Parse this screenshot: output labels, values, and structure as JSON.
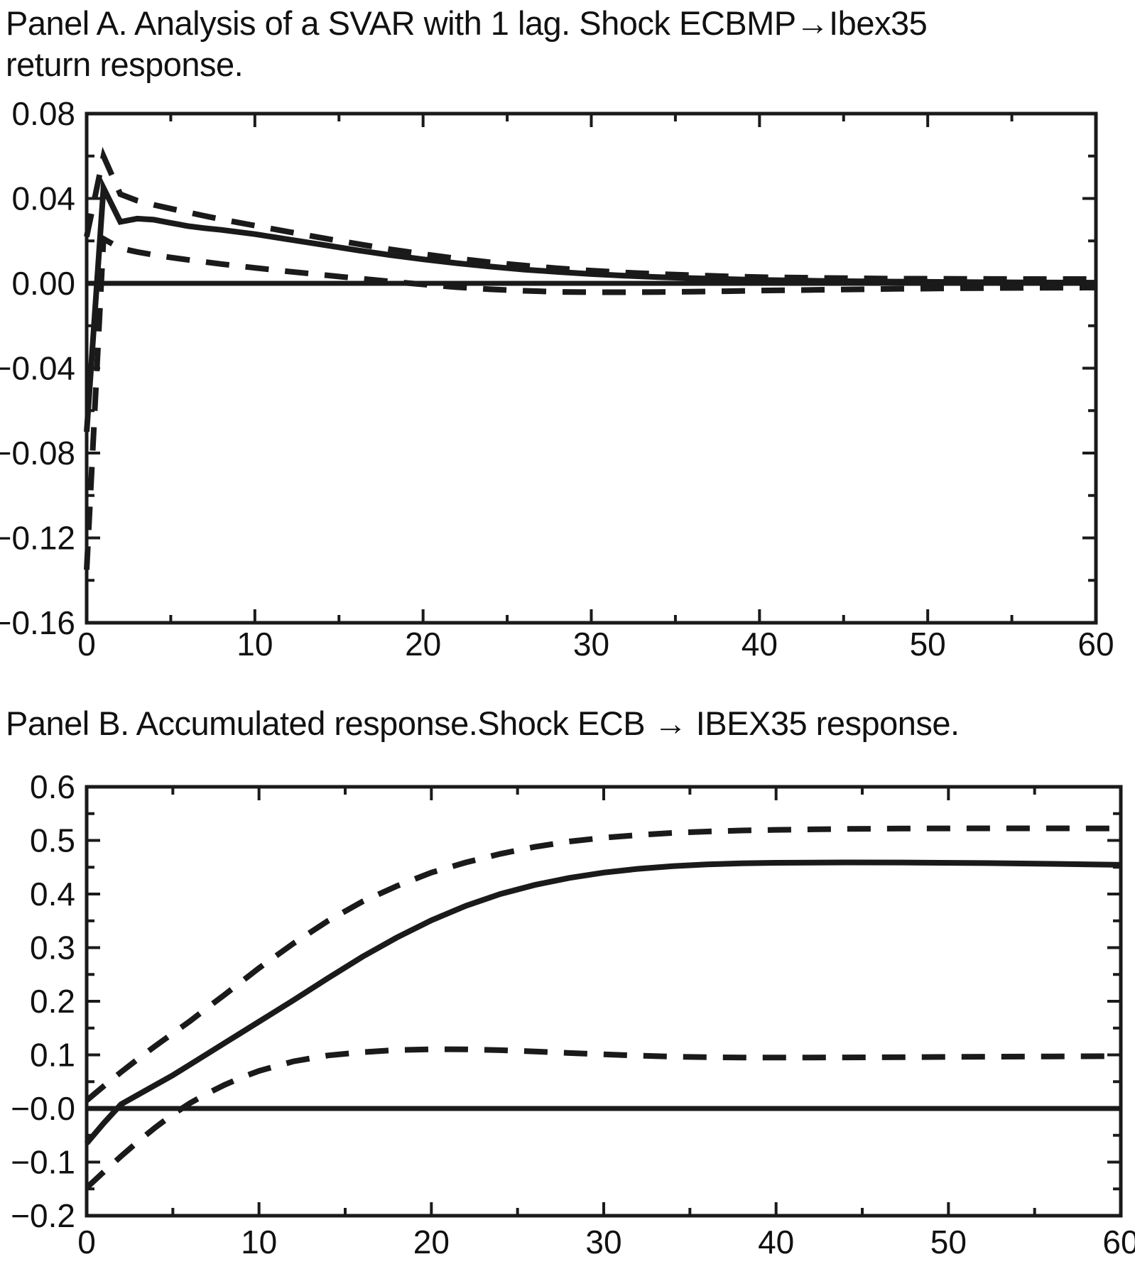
{
  "page": {
    "background_color": "#ffffff",
    "ink_color": "#1a1a1a"
  },
  "chart_data": [
    {
      "id": "panel_a",
      "type": "line",
      "title": "Panel A. Analysis of a SVAR with 1 lag. Shock ECBMP→Ibex35 return response.",
      "title_lines": [
        "Panel A. Analysis of a SVAR with 1 lag. Shock ECBMP→Ibex35",
        "return response."
      ],
      "xlabel": "",
      "ylabel": "",
      "xlim": [
        0,
        60
      ],
      "ylim": [
        -0.16,
        0.08
      ],
      "grid": false,
      "legend": "none",
      "zero_line": true,
      "xticks": {
        "major": [
          {
            "v": 0,
            "label": "0"
          },
          {
            "v": 10,
            "label": "10"
          },
          {
            "v": 20,
            "label": "20"
          },
          {
            "v": 30,
            "label": "30"
          },
          {
            "v": 40,
            "label": "40"
          },
          {
            "v": 50,
            "label": "50"
          },
          {
            "v": 60,
            "label": "60"
          }
        ],
        "minor": [
          5,
          15,
          25,
          35,
          45,
          55
        ]
      },
      "yticks": {
        "major": [
          {
            "v": 0.08,
            "label": "0.08"
          },
          {
            "v": 0.04,
            "label": "0.04"
          },
          {
            "v": 0.0,
            "label": "0.00"
          },
          {
            "v": -0.04,
            "label": "−0.04"
          },
          {
            "v": -0.08,
            "label": "−0.08"
          },
          {
            "v": -0.12,
            "label": "−0.12"
          },
          {
            "v": -0.16,
            "label": "−0.16"
          }
        ],
        "minor": [
          0.06,
          0.02,
          -0.02,
          -0.06,
          -0.1,
          -0.14
        ]
      },
      "series": [
        {
          "name": "upper-confidence-band",
          "style": "dashed",
          "points": [
            [
              0,
              0.022
            ],
            [
              1,
              0.06
            ],
            [
              2,
              0.042
            ],
            [
              3,
              0.039
            ],
            [
              4,
              0.037
            ],
            [
              5,
              0.0352
            ],
            [
              6,
              0.0335
            ],
            [
              7,
              0.0318
            ],
            [
              8,
              0.0302
            ],
            [
              9,
              0.0287
            ],
            [
              10,
              0.0272
            ],
            [
              12,
              0.0243
            ],
            [
              14,
              0.0214
            ],
            [
              16,
              0.0187
            ],
            [
              18,
              0.0161
            ],
            [
              20,
              0.0138
            ],
            [
              22,
              0.0117
            ],
            [
              24,
              0.0099
            ],
            [
              26,
              0.0084
            ],
            [
              28,
              0.0071
            ],
            [
              30,
              0.006
            ],
            [
              32,
              0.0051
            ],
            [
              34,
              0.0044
            ],
            [
              36,
              0.0038
            ],
            [
              38,
              0.0033
            ],
            [
              40,
              0.0029
            ],
            [
              44,
              0.0025
            ],
            [
              48,
              0.0022
            ],
            [
              52,
              0.0021
            ],
            [
              56,
              0.002
            ],
            [
              60,
              0.002
            ]
          ]
        },
        {
          "name": "lower-confidence-band",
          "style": "dashed",
          "points": [
            [
              0,
              -0.135
            ],
            [
              1,
              0.021
            ],
            [
              2,
              0.0165
            ],
            [
              3,
              0.0148
            ],
            [
              4,
              0.0134
            ],
            [
              5,
              0.0122
            ],
            [
              6,
              0.0111
            ],
            [
              7,
              0.0101
            ],
            [
              8,
              0.0091
            ],
            [
              9,
              0.0082
            ],
            [
              10,
              0.0073
            ],
            [
              12,
              0.0056
            ],
            [
              14,
              0.004
            ],
            [
              16,
              0.0024
            ],
            [
              18,
              0.0009
            ],
            [
              20,
              -0.0005
            ],
            [
              22,
              -0.0018
            ],
            [
              24,
              -0.0028
            ],
            [
              26,
              -0.0035
            ],
            [
              28,
              -0.004
            ],
            [
              30,
              -0.0042
            ],
            [
              32,
              -0.0042
            ],
            [
              34,
              -0.0041
            ],
            [
              36,
              -0.0039
            ],
            [
              38,
              -0.0037
            ],
            [
              40,
              -0.0034
            ],
            [
              44,
              -0.003
            ],
            [
              48,
              -0.0026
            ],
            [
              52,
              -0.0023
            ],
            [
              56,
              -0.0021
            ],
            [
              60,
              -0.002
            ]
          ]
        },
        {
          "name": "point-estimate-response",
          "style": "solid",
          "points": [
            [
              0,
              -0.07
            ],
            [
              1,
              0.045
            ],
            [
              2,
              0.029
            ],
            [
              3,
              0.0305
            ],
            [
              4,
              0.03
            ],
            [
              5,
              0.0285
            ],
            [
              6,
              0.027
            ],
            [
              7,
              0.026
            ],
            [
              8,
              0.0252
            ],
            [
              9,
              0.0242
            ],
            [
              10,
              0.0232
            ],
            [
              12,
              0.0207
            ],
            [
              14,
              0.0182
            ],
            [
              16,
              0.0157
            ],
            [
              18,
              0.0134
            ],
            [
              20,
              0.0113
            ],
            [
              22,
              0.0095
            ],
            [
              24,
              0.0079
            ],
            [
              26,
              0.0065
            ],
            [
              28,
              0.0054
            ],
            [
              30,
              0.0044
            ],
            [
              32,
              0.0036
            ],
            [
              34,
              0.0029
            ],
            [
              36,
              0.0024
            ],
            [
              38,
              0.002
            ],
            [
              40,
              0.0016
            ],
            [
              44,
              0.0011
            ],
            [
              48,
              0.0008
            ],
            [
              52,
              0.0006
            ],
            [
              56,
              0.0004
            ],
            [
              60,
              0.0003
            ]
          ]
        }
      ]
    },
    {
      "id": "panel_b",
      "type": "line",
      "title": "Panel B. Accumulated response.Shock ECB → IBEX35 response.",
      "title_lines": [
        "Panel B. Accumulated response.Shock ECB → IBEX35 response."
      ],
      "xlabel": "",
      "ylabel": "",
      "xlim": [
        0,
        60
      ],
      "ylim": [
        -0.2,
        0.6
      ],
      "grid": false,
      "legend": "none",
      "zero_line": true,
      "xticks": {
        "major": [
          {
            "v": 0,
            "label": "0"
          },
          {
            "v": 10,
            "label": "10"
          },
          {
            "v": 20,
            "label": "20"
          },
          {
            "v": 30,
            "label": "30"
          },
          {
            "v": 40,
            "label": "40"
          },
          {
            "v": 50,
            "label": "50"
          },
          {
            "v": 60,
            "label": "60"
          }
        ],
        "minor": [
          5,
          15,
          25,
          35,
          45,
          55
        ]
      },
      "yticks": {
        "major": [
          {
            "v": 0.6,
            "label": "0.6"
          },
          {
            "v": 0.5,
            "label": "0.5"
          },
          {
            "v": 0.4,
            "label": "0.4"
          },
          {
            "v": 0.3,
            "label": "0.3"
          },
          {
            "v": 0.2,
            "label": "0.2"
          },
          {
            "v": 0.1,
            "label": "0.1"
          },
          {
            "v": 0.0,
            "label": "−0.0"
          },
          {
            "v": -0.1,
            "label": "−0.1"
          },
          {
            "v": -0.2,
            "label": "−0.2"
          }
        ],
        "minor": [
          0.55,
          0.45,
          0.35,
          0.25,
          0.15,
          0.05,
          -0.05,
          -0.15
        ]
      },
      "series": [
        {
          "name": "upper-confidence-band",
          "style": "dashed",
          "points": [
            [
              0,
              0.015
            ],
            [
              1,
              0.042
            ],
            [
              2,
              0.068
            ],
            [
              3,
              0.093
            ],
            [
              4,
              0.117
            ],
            [
              5,
              0.14
            ],
            [
              6,
              0.163
            ],
            [
              7,
              0.188
            ],
            [
              8,
              0.212
            ],
            [
              9,
              0.237
            ],
            [
              10,
              0.262
            ],
            [
              12,
              0.308
            ],
            [
              14,
              0.35
            ],
            [
              16,
              0.386
            ],
            [
              18,
              0.415
            ],
            [
              20,
              0.44
            ],
            [
              22,
              0.459
            ],
            [
              24,
              0.475
            ],
            [
              26,
              0.488
            ],
            [
              28,
              0.498
            ],
            [
              30,
              0.505
            ],
            [
              32,
              0.51
            ],
            [
              34,
              0.514
            ],
            [
              36,
              0.5166
            ],
            [
              38,
              0.5185
            ],
            [
              40,
              0.5198
            ],
            [
              44,
              0.5215
            ],
            [
              48,
              0.5222
            ],
            [
              52,
              0.5225
            ],
            [
              56,
              0.5225
            ],
            [
              60,
              0.5222
            ]
          ]
        },
        {
          "name": "lower-confidence-band",
          "style": "dashed",
          "points": [
            [
              0,
              -0.148
            ],
            [
              1,
              -0.118
            ],
            [
              2,
              -0.089
            ],
            [
              3,
              -0.061
            ],
            [
              4,
              -0.035
            ],
            [
              5,
              -0.011
            ],
            [
              6,
              0.01
            ],
            [
              7,
              0.028
            ],
            [
              8,
              0.044
            ],
            [
              9,
              0.058
            ],
            [
              10,
              0.07
            ],
            [
              12,
              0.088
            ],
            [
              14,
              0.099
            ],
            [
              16,
              0.105
            ],
            [
              18,
              0.109
            ],
            [
              20,
              0.1105
            ],
            [
              22,
              0.1103
            ],
            [
              24,
              0.1088
            ],
            [
              26,
              0.1063
            ],
            [
              28,
              0.1035
            ],
            [
              30,
              0.101
            ],
            [
              32,
              0.0985
            ],
            [
              34,
              0.0967
            ],
            [
              36,
              0.0956
            ],
            [
              38,
              0.0951
            ],
            [
              40,
              0.095
            ],
            [
              44,
              0.0952
            ],
            [
              48,
              0.0958
            ],
            [
              52,
              0.0965
            ],
            [
              56,
              0.0971
            ],
            [
              60,
              0.0976
            ]
          ]
        },
        {
          "name": "accumulated-point-estimate",
          "style": "solid",
          "points": [
            [
              0,
              -0.065
            ],
            [
              1,
              -0.027
            ],
            [
              2,
              0.008
            ],
            [
              3,
              0.026
            ],
            [
              4,
              0.044
            ],
            [
              5,
              0.062
            ],
            [
              6,
              0.082
            ],
            [
              7,
              0.102
            ],
            [
              8,
              0.122
            ],
            [
              9,
              0.142
            ],
            [
              10,
              0.162
            ],
            [
              12,
              0.202
            ],
            [
              14,
              0.243
            ],
            [
              16,
              0.283
            ],
            [
              18,
              0.319
            ],
            [
              20,
              0.351
            ],
            [
              22,
              0.378
            ],
            [
              24,
              0.4
            ],
            [
              26,
              0.417
            ],
            [
              28,
              0.43
            ],
            [
              30,
              0.44
            ],
            [
              32,
              0.447
            ],
            [
              34,
              0.452
            ],
            [
              36,
              0.4553
            ],
            [
              38,
              0.4572
            ],
            [
              40,
              0.4583
            ],
            [
              44,
              0.459
            ],
            [
              48,
              0.4587
            ],
            [
              52,
              0.4578
            ],
            [
              56,
              0.4563
            ],
            [
              60,
              0.4545
            ]
          ]
        }
      ]
    }
  ]
}
